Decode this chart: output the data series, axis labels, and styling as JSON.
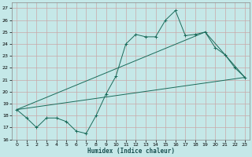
{
  "xlabel": "Humidex (Indice chaleur)",
  "bg_color": "#c5e8e8",
  "grid_color": "#c8a8a8",
  "line_color": "#1a6b5a",
  "xlim": [
    -0.5,
    23.5
  ],
  "ylim": [
    16,
    27.5
  ],
  "yticks": [
    16,
    17,
    18,
    19,
    20,
    21,
    22,
    23,
    24,
    25,
    26,
    27
  ],
  "xticks": [
    0,
    1,
    2,
    3,
    4,
    5,
    6,
    7,
    8,
    9,
    10,
    11,
    12,
    13,
    14,
    15,
    16,
    17,
    18,
    19,
    20,
    21,
    22,
    23
  ],
  "series1_x": [
    0,
    1,
    2,
    3,
    4,
    5,
    6,
    7,
    8,
    9,
    10,
    11,
    12,
    13,
    14,
    15,
    16,
    17,
    18,
    19,
    20,
    21,
    22,
    23
  ],
  "series1_y": [
    18.5,
    17.8,
    17.0,
    17.8,
    17.8,
    17.5,
    16.7,
    16.5,
    18.0,
    19.8,
    21.3,
    24.0,
    24.8,
    24.6,
    24.6,
    26.0,
    26.8,
    24.7,
    24.8,
    25.0,
    23.7,
    23.1,
    22.0,
    21.2
  ],
  "series3_x": [
    0,
    23
  ],
  "series3_y": [
    18.5,
    21.2
  ],
  "series4_x": [
    0,
    19,
    23
  ],
  "series4_y": [
    18.5,
    25.0,
    21.2
  ]
}
